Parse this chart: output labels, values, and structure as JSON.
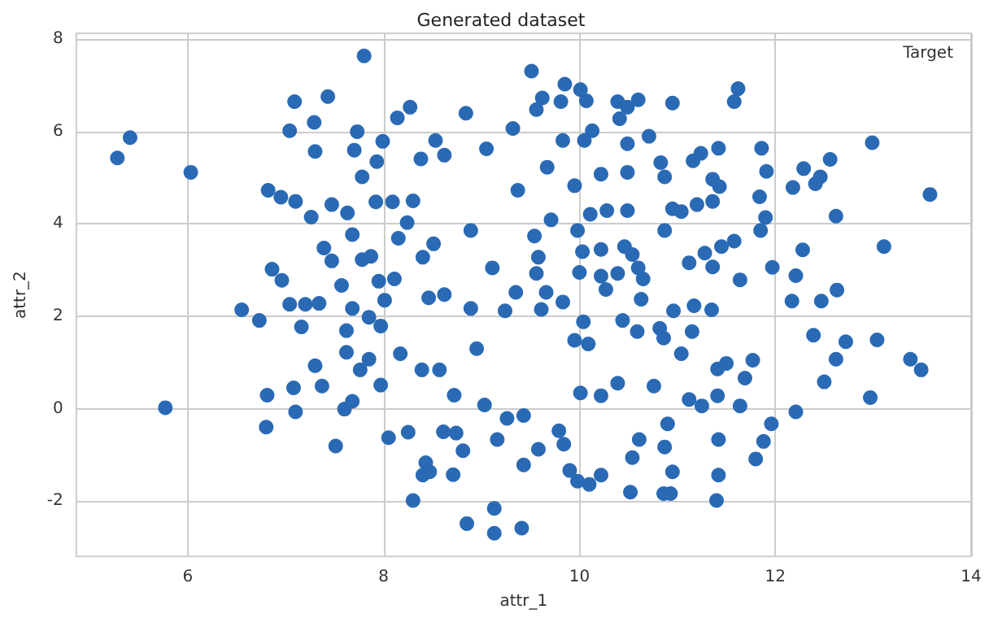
{
  "chart_data": {
    "type": "scatter",
    "title": "Generated dataset",
    "xlabel": "attr_1",
    "ylabel": "attr_2",
    "legend_title": "Target",
    "xlim": [
      4.86,
      14
    ],
    "xticks": [
      6,
      8,
      10,
      12,
      14
    ],
    "ylim": [
      -3.2,
      8.13
    ],
    "yticks": [
      -2,
      0,
      2,
      4,
      6,
      8
    ],
    "grid": true,
    "marker": "circle",
    "series": [
      {
        "color": "#2a6ab5",
        "x": [
          5.28,
          5.41,
          6.03,
          5.77,
          6.55,
          6.73,
          6.82,
          6.81,
          6.8,
          6.86,
          6.95,
          6.96,
          7.04,
          7.04,
          7.09,
          7.1,
          7.08,
          7.1,
          7.16,
          7.2,
          7.26,
          7.29,
          7.3,
          7.3,
          7.34,
          7.39,
          7.37,
          7.43,
          7.47,
          7.47,
          7.51,
          7.57,
          7.6,
          7.62,
          7.62,
          7.63,
          7.68,
          7.7,
          7.68,
          7.68,
          7.73,
          7.76,
          7.78,
          7.8,
          7.78,
          7.85,
          7.85,
          7.87,
          7.93,
          7.92,
          7.95,
          7.97,
          7.99,
          8.01,
          7.97,
          8.05,
          8.09,
          8.11,
          8.14,
          8.15,
          8.17,
          8.27,
          8.24,
          8.25,
          8.3,
          8.3,
          8.38,
          8.39,
          8.4,
          8.43,
          8.4,
          8.46,
          8.47,
          8.51,
          8.53,
          8.57,
          8.62,
          8.61,
          8.62,
          8.71,
          8.72,
          8.74,
          8.84,
          8.85,
          8.81,
          8.89,
          9.05,
          9.13,
          9.13,
          8.89,
          8.95,
          9.03,
          9.11,
          9.16,
          9.51,
          9.41,
          9.85,
          10.01,
          9.62,
          9.56,
          9.32,
          9.81,
          10.07,
          10.39,
          10.49,
          10.6,
          10.41,
          10.95,
          11.58,
          11.62,
          10.13,
          10.05,
          9.83,
          10.49,
          10.71,
          11.42,
          11.86,
          12.99,
          12.56,
          12.29,
          11.91,
          11.24,
          11.16,
          10.83,
          10.87,
          10.22,
          10.49,
          12.46,
          12.41,
          12.18,
          13.58,
          11.84,
          11.36,
          11.43,
          11.36,
          12.62,
          11.9,
          11.85,
          13.11,
          12.28,
          11.97,
          12.21,
          11.64,
          12.63,
          12.17,
          12.47,
          12.39,
          12.72,
          13.04,
          13.38,
          13.49,
          12.62,
          12.5,
          12.97,
          12.21,
          11.96,
          11.88,
          11.8,
          11.42,
          11.4,
          11.42,
          11.64,
          11.69,
          11.77,
          11.5,
          11.41,
          11.41,
          11.25,
          11.12,
          10.95,
          10.86,
          10.93,
          10.52,
          10.54,
          10.61,
          10.87,
          10.9,
          10.22,
          10.1,
          9.98,
          9.9,
          9.84,
          9.79,
          9.58,
          9.43,
          9.43,
          9.26,
          10.01,
          10.22,
          10.39,
          10.76,
          11.04,
          11.15,
          10.86,
          10.82,
          10.59,
          10.44,
          10.04,
          10.09,
          9.95,
          9.83,
          9.66,
          9.61,
          9.35,
          9.24,
          10.27,
          10.65,
          10.63,
          10.96,
          11.17,
          11.35,
          11.36,
          11.12,
          11.28,
          11.45,
          11.58,
          10.95,
          11.04,
          11.2,
          10.87,
          10.49,
          10.28,
          10.11,
          9.95,
          9.67,
          9.37,
          9.98,
          10.03,
          10.22,
          10.46,
          10.54,
          10.6,
          10.39,
          10.22,
          10.0,
          9.56,
          9.54,
          9.71,
          9.58
        ],
        "values": [
          5.43,
          5.87,
          5.12,
          0.02,
          2.14,
          1.91,
          4.73,
          0.29,
          -0.4,
          3.02,
          4.58,
          2.78,
          6.02,
          2.26,
          6.65,
          4.49,
          0.45,
          -0.07,
          1.77,
          2.26,
          4.15,
          6.2,
          5.57,
          0.93,
          2.28,
          3.48,
          0.49,
          6.76,
          4.42,
          3.2,
          -0.81,
          2.67,
          -0.01,
          1.69,
          1.22,
          4.24,
          0.16,
          5.6,
          3.77,
          2.17,
          6.0,
          0.84,
          5.02,
          7.64,
          3.23,
          1.98,
          1.07,
          3.3,
          5.35,
          4.48,
          2.76,
          0.51,
          5.79,
          2.35,
          1.79,
          -0.63,
          4.48,
          2.81,
          6.3,
          3.69,
          1.19,
          6.53,
          4.03,
          -0.51,
          -1.99,
          4.5,
          5.41,
          0.84,
          3.28,
          -1.17,
          -1.44,
          2.4,
          -1.37,
          3.57,
          5.81,
          0.84,
          5.49,
          -0.5,
          2.47,
          -1.43,
          0.29,
          -0.53,
          6.4,
          -2.49,
          -0.91,
          3.86,
          5.63,
          -2.16,
          -2.7,
          2.17,
          1.3,
          0.08,
          3.05,
          -0.67,
          7.31,
          -2.59,
          7.03,
          6.91,
          6.73,
          6.48,
          6.07,
          6.65,
          6.67,
          6.65,
          6.53,
          6.69,
          6.28,
          6.62,
          6.65,
          6.93,
          6.02,
          5.81,
          5.81,
          5.74,
          5.9,
          5.64,
          5.64,
          5.76,
          5.4,
          5.2,
          5.14,
          5.53,
          5.37,
          5.33,
          5.02,
          5.08,
          5.12,
          5.02,
          4.87,
          4.79,
          4.64,
          4.59,
          4.97,
          4.81,
          4.49,
          4.17,
          4.14,
          3.86,
          3.51,
          3.44,
          3.06,
          2.88,
          2.79,
          2.57,
          2.33,
          2.33,
          1.59,
          1.45,
          1.49,
          1.07,
          0.84,
          1.07,
          0.58,
          0.24,
          -0.07,
          -0.33,
          -0.71,
          -1.09,
          -1.44,
          -1.99,
          -0.67,
          0.06,
          0.66,
          1.05,
          0.98,
          0.86,
          0.28,
          0.06,
          0.2,
          -1.37,
          -1.84,
          -1.84,
          -1.81,
          -1.06,
          -0.67,
          -0.83,
          -0.33,
          -1.44,
          -1.64,
          -1.57,
          -1.34,
          -0.77,
          -0.48,
          -0.88,
          -1.22,
          -0.15,
          -0.21,
          0.34,
          0.28,
          0.55,
          0.49,
          1.19,
          1.67,
          1.53,
          1.74,
          1.67,
          1.91,
          1.88,
          1.4,
          1.48,
          2.31,
          2.52,
          2.15,
          2.52,
          2.12,
          2.58,
          2.81,
          2.37,
          2.12,
          2.23,
          2.14,
          3.07,
          3.16,
          3.37,
          3.51,
          3.63,
          4.33,
          4.27,
          4.42,
          3.86,
          4.29,
          4.29,
          4.21,
          4.83,
          5.23,
          4.73,
          3.86,
          3.4,
          3.45,
          3.51,
          3.34,
          3.05,
          2.93,
          2.87,
          2.95,
          2.93,
          3.74,
          4.09,
          3.28
        ]
      }
    ]
  }
}
